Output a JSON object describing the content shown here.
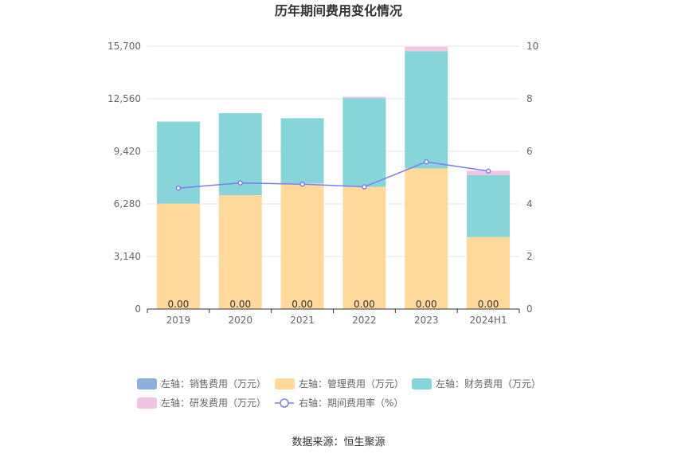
{
  "chart_data": {
    "type": "bar",
    "title": "历年期间费用变化情况",
    "source": "数据来源：恒生聚源",
    "categories": [
      "2019",
      "2020",
      "2021",
      "2022",
      "2023",
      "2024H1"
    ],
    "y_left": {
      "ticks": [
        "0",
        "3,140",
        "6,280",
        "9,420",
        "12,560",
        "15,700"
      ],
      "ylim": [
        0,
        15700
      ]
    },
    "y_right": {
      "ticks": [
        "0",
        "2",
        "4",
        "6",
        "8",
        "10"
      ],
      "ylim": [
        0,
        10
      ]
    },
    "series": [
      {
        "name": "左轴：销售费用（万元）",
        "axis": "left",
        "stack": true,
        "color": "#8eaedc",
        "values": [
          0,
          0,
          0,
          0,
          0,
          0
        ],
        "labels": [
          "0.00",
          "0.00",
          "0.00",
          "0.00",
          "0.00",
          "0.00"
        ]
      },
      {
        "name": "左轴：管理费用（万元）",
        "axis": "left",
        "stack": true,
        "color": "#ffd99c",
        "values": [
          6300,
          6800,
          7500,
          7300,
          8400,
          4300
        ]
      },
      {
        "name": "左轴：财务费用（万元）",
        "axis": "left",
        "stack": true,
        "color": "#87d5d9",
        "values": [
          4900,
          4900,
          3900,
          5300,
          7000,
          3700
        ]
      },
      {
        "name": "左轴：研发费用（万元）",
        "axis": "left",
        "stack": true,
        "color": "#f0c4e2",
        "values": [
          0,
          0,
          0,
          80,
          260,
          260
        ]
      },
      {
        "name": "右轴：期间费用率（%）",
        "axis": "right",
        "type": "line",
        "color": "#7b7ef0",
        "values": [
          4.6,
          4.8,
          4.75,
          4.65,
          5.6,
          5.25
        ]
      }
    ],
    "legend_position": "bottom",
    "grid": true
  }
}
